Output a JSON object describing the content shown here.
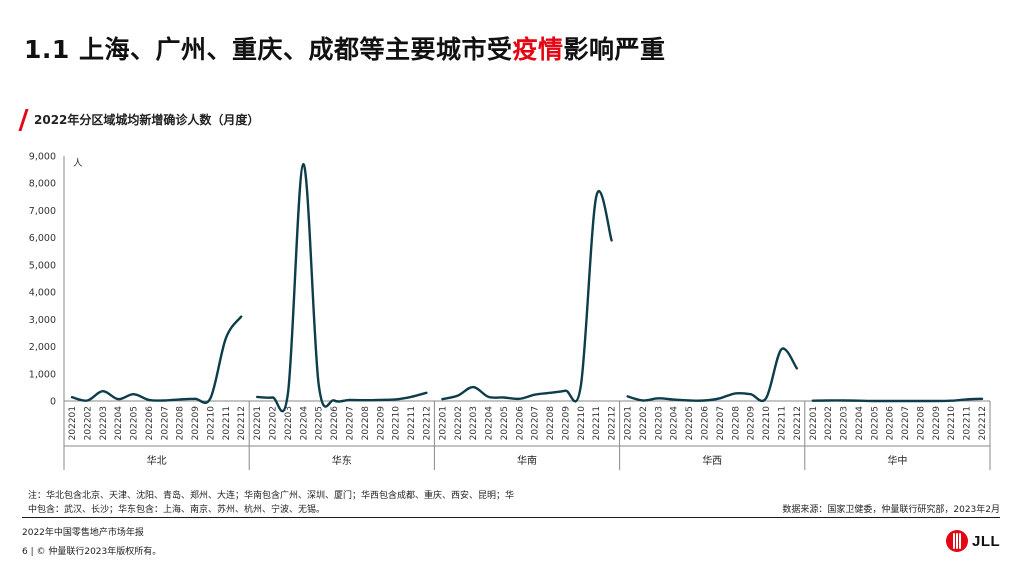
{
  "header": {
    "title_prefix": "1.1 上海、广州、重庆、成都等主要城市受",
    "title_highlight": "疫情",
    "title_suffix": "影响严重",
    "subtitle": "2022年分区域城均新增确诊人数（月度）"
  },
  "chart_data": {
    "type": "line",
    "ylabel": "人",
    "ylim": [
      0,
      9000
    ],
    "yticks": [
      "0",
      "1,000",
      "2,000",
      "3,000",
      "4,000",
      "5,000",
      "6,000",
      "7,000",
      "8,000",
      "9,000"
    ],
    "grid": false,
    "line_color": "#0d3d4a",
    "categories": [
      "202201",
      "202202",
      "202203",
      "202204",
      "202205",
      "202206",
      "202207",
      "202208",
      "202209",
      "202210",
      "202211",
      "202212"
    ],
    "series": [
      {
        "name": "华北",
        "values": [
          140,
          20,
          360,
          70,
          250,
          40,
          20,
          60,
          80,
          100,
          2300,
          3100
        ]
      },
      {
        "name": "华东",
        "values": [
          150,
          130,
          300,
          8700,
          600,
          20,
          40,
          30,
          40,
          60,
          150,
          300
        ]
      },
      {
        "name": "华南",
        "values": [
          70,
          200,
          510,
          150,
          130,
          80,
          230,
          300,
          380,
          550,
          7500,
          5900
        ]
      },
      {
        "name": "华西",
        "values": [
          170,
          20,
          100,
          50,
          20,
          20,
          100,
          280,
          250,
          100,
          1900,
          1200
        ]
      },
      {
        "name": "华中",
        "values": [
          10,
          20,
          20,
          10,
          0,
          0,
          0,
          0,
          0,
          10,
          60,
          80
        ]
      }
    ]
  },
  "notes": {
    "line1": "注：华北包含北京、天津、沈阳、青岛、郑州、大连；华南包含广州、深圳、厦门；华西包含成都、重庆、西安、昆明；华",
    "line2": "中包含：武汉、长沙；华东包含：上海、南京、苏州、杭州、宁波、无锡。"
  },
  "source": "数据来源：国家卫健委，仲量联行研究部，2023年2月",
  "footer": {
    "report": "2022年中国零售地产市场年报",
    "copyright": "6 | © 仲量联行2023年版权所有。"
  },
  "logo": {
    "text": "JLL",
    "color": "#e30613"
  }
}
